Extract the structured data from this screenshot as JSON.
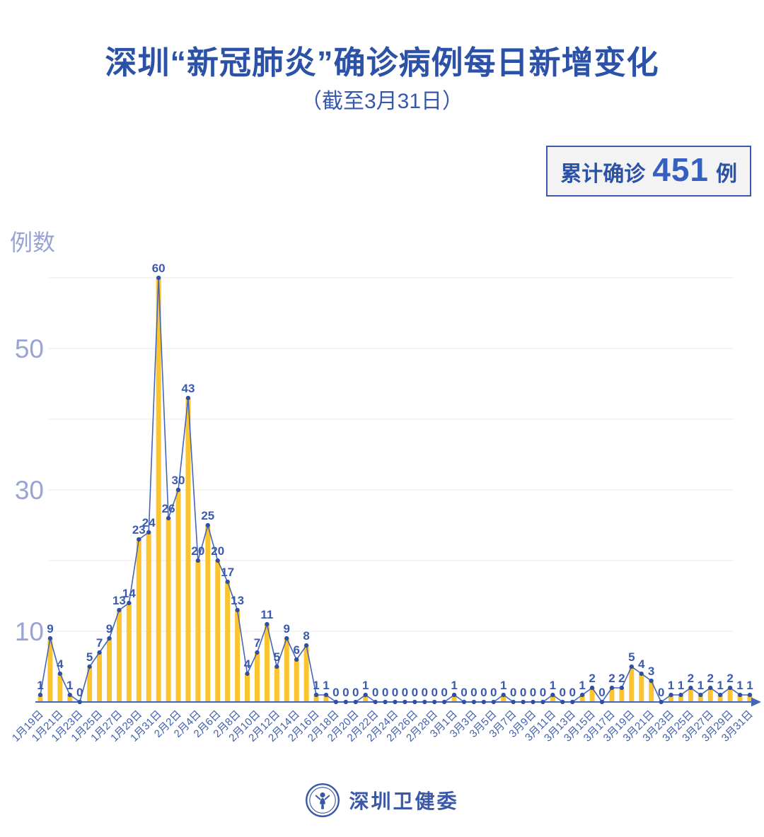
{
  "title": "深圳“新冠肺炎”确诊病例每日新增变化",
  "subtitle": "（截至3月31日）",
  "badge": {
    "prefix": "累计确诊",
    "value": "451",
    "suffix": "例"
  },
  "footer": {
    "org": "深圳卫健委"
  },
  "colors": {
    "title": "#2B52A7",
    "bar": "#FCC52F",
    "line": "#4565B8",
    "dot": "#2F4FA3",
    "value_label": "#3B5AAD",
    "axis": "#4565B8",
    "x_label": "#4060B0",
    "grid": "#E9E9E9",
    "y_tick": "#98A5D4",
    "badge_border": "#3B5AAD",
    "badge_bg": "#F3F3F3"
  },
  "chart_data": {
    "type": "bar",
    "note": "daily new confirmed cases, yellow bars with blue trend line and point labels",
    "ylabel": "例数",
    "ylim": [
      0,
      60
    ],
    "y_ticks": [
      10,
      30,
      50
    ],
    "grid_values": [
      10,
      20,
      30,
      40,
      50,
      60
    ],
    "x_label_interval": 2,
    "annotation": "累计确诊 451 例",
    "x": [
      "1月19日",
      "1月20日",
      "1月21日",
      "1月22日",
      "1月23日",
      "1月24日",
      "1月25日",
      "1月26日",
      "1月27日",
      "1月28日",
      "1月29日",
      "1月30日",
      "1月31日",
      "2月1日",
      "2月2日",
      "2月3日",
      "2月4日",
      "2月5日",
      "2月6日",
      "2月7日",
      "2月8日",
      "2月9日",
      "2月10日",
      "2月11日",
      "2月12日",
      "2月13日",
      "2月14日",
      "2月15日",
      "2月16日",
      "2月17日",
      "2月18日",
      "2月19日",
      "2月20日",
      "2月21日",
      "2月22日",
      "2月23日",
      "2月24日",
      "2月25日",
      "2月26日",
      "2月27日",
      "2月28日",
      "2月29日",
      "3月1日",
      "3月2日",
      "3月3日",
      "3月4日",
      "3月5日",
      "3月6日",
      "3月7日",
      "3月8日",
      "3月9日",
      "3月10日",
      "3月11日",
      "3月12日",
      "3月13日",
      "3月14日",
      "3月15日",
      "3月16日",
      "3月17日",
      "3月18日",
      "3月19日",
      "3月20日",
      "3月21日",
      "3月22日",
      "3月23日",
      "3月24日",
      "3月25日",
      "3月26日",
      "3月27日",
      "3月28日",
      "3月29日",
      "3月30日",
      "3月31日"
    ],
    "values": [
      1,
      9,
      4,
      1,
      0,
      5,
      7,
      9,
      13,
      14,
      23,
      24,
      60,
      26,
      30,
      43,
      20,
      25,
      20,
      17,
      13,
      4,
      7,
      11,
      5,
      9,
      6,
      8,
      1,
      1,
      0,
      0,
      0,
      1,
      0,
      0,
      0,
      0,
      0,
      0,
      0,
      0,
      1,
      0,
      0,
      0,
      0,
      1,
      0,
      0,
      0,
      0,
      1,
      0,
      0,
      1,
      2,
      0,
      2,
      2,
      5,
      4,
      3,
      0,
      1,
      1,
      2,
      1,
      2,
      1,
      2,
      1,
      1
    ]
  }
}
